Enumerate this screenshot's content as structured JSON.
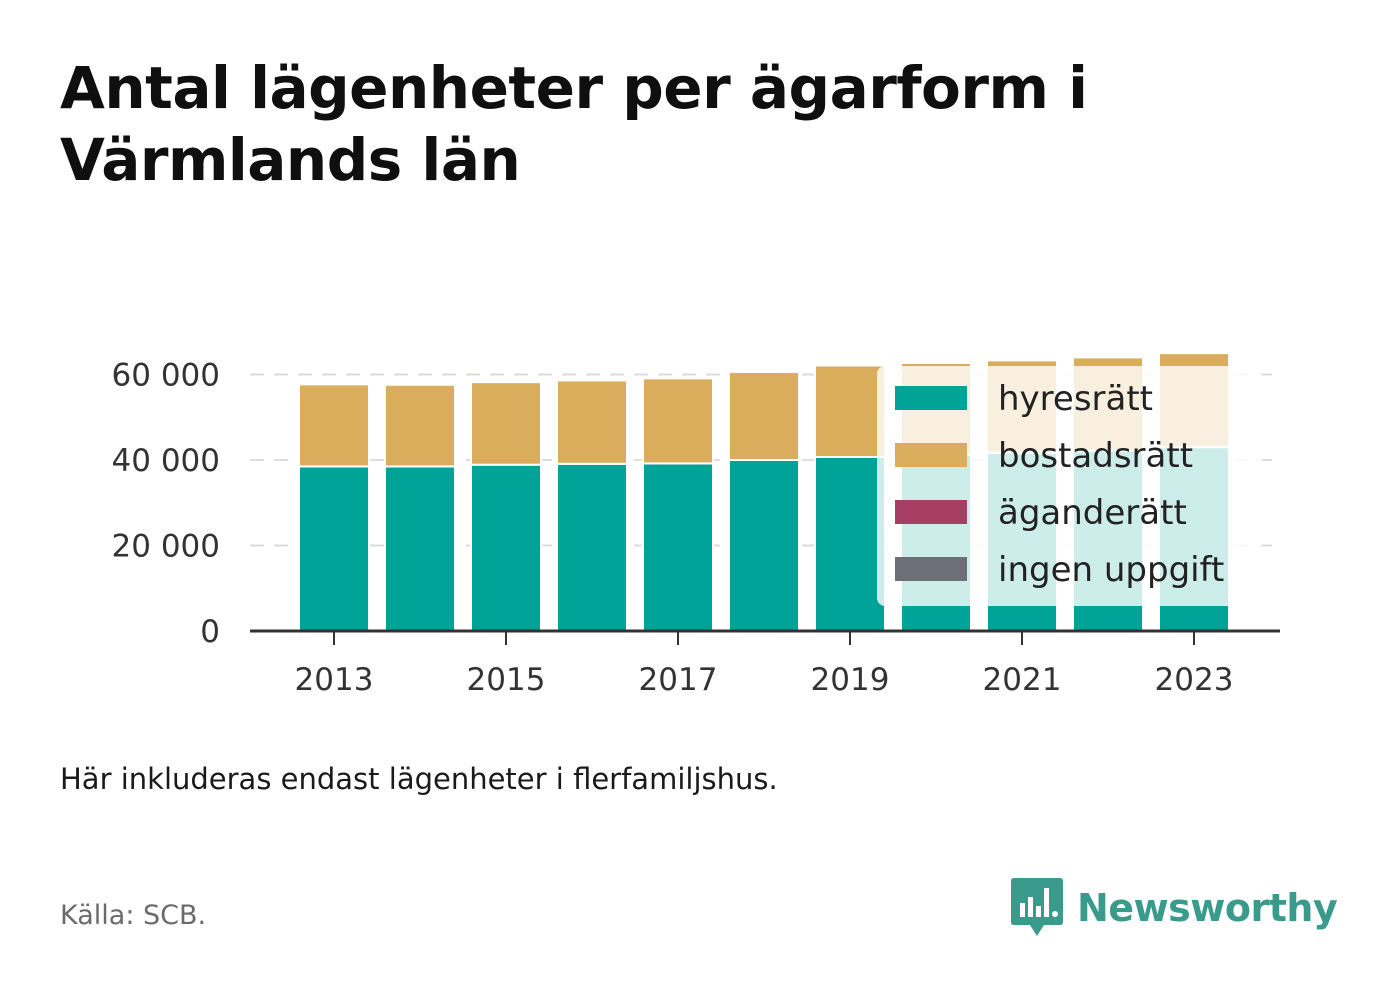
{
  "title": "Antal lägenheter per ägarform i Värmlands län",
  "note": "Här inkluderas endast lägenheter i flerfamiljshus.",
  "source": "Källa: SCB.",
  "brand": "Newsworthy",
  "colors": {
    "hyresratt": "#00a398",
    "bostadsratt": "#d9ad5b",
    "aganderatt": "#a63f63",
    "ingen_uppgift": "#6e6e78",
    "axis": "#333333",
    "grid": "#dddddd",
    "brand": "#3a9a8c"
  },
  "chart_data": {
    "type": "bar",
    "stacked": true,
    "categories": [
      "2013",
      "2014",
      "2015",
      "2016",
      "2017",
      "2018",
      "2019",
      "2020",
      "2021",
      "2022",
      "2023"
    ],
    "x_tick_labels": [
      "2013",
      "2015",
      "2017",
      "2019",
      "2021",
      "2023"
    ],
    "series": [
      {
        "name": "hyresrätt",
        "color_key": "hyresratt",
        "values": [
          38500,
          38500,
          38900,
          39100,
          39200,
          40000,
          40700,
          41200,
          41700,
          42200,
          43000
        ]
      },
      {
        "name": "bostadsrätt",
        "color_key": "bostadsratt",
        "values": [
          19200,
          19100,
          19300,
          19500,
          19900,
          20600,
          21400,
          21500,
          21600,
          21800,
          22000
        ]
      },
      {
        "name": "äganderätt",
        "color_key": "aganderatt",
        "values": [
          0,
          0,
          0,
          0,
          0,
          0,
          0,
          0,
          0,
          0,
          0
        ]
      },
      {
        "name": "ingen uppgift",
        "color_key": "ingen_uppgift",
        "values": [
          0,
          0,
          0,
          0,
          0,
          0,
          0,
          0,
          0,
          0,
          0
        ]
      }
    ],
    "y_ticks": [
      0,
      20000,
      40000,
      60000
    ],
    "y_tick_labels": [
      "0",
      "20 000",
      "40 000",
      "60 000"
    ],
    "ylim": [
      0,
      60000
    ],
    "grid": true,
    "legend_position": "top-right"
  }
}
